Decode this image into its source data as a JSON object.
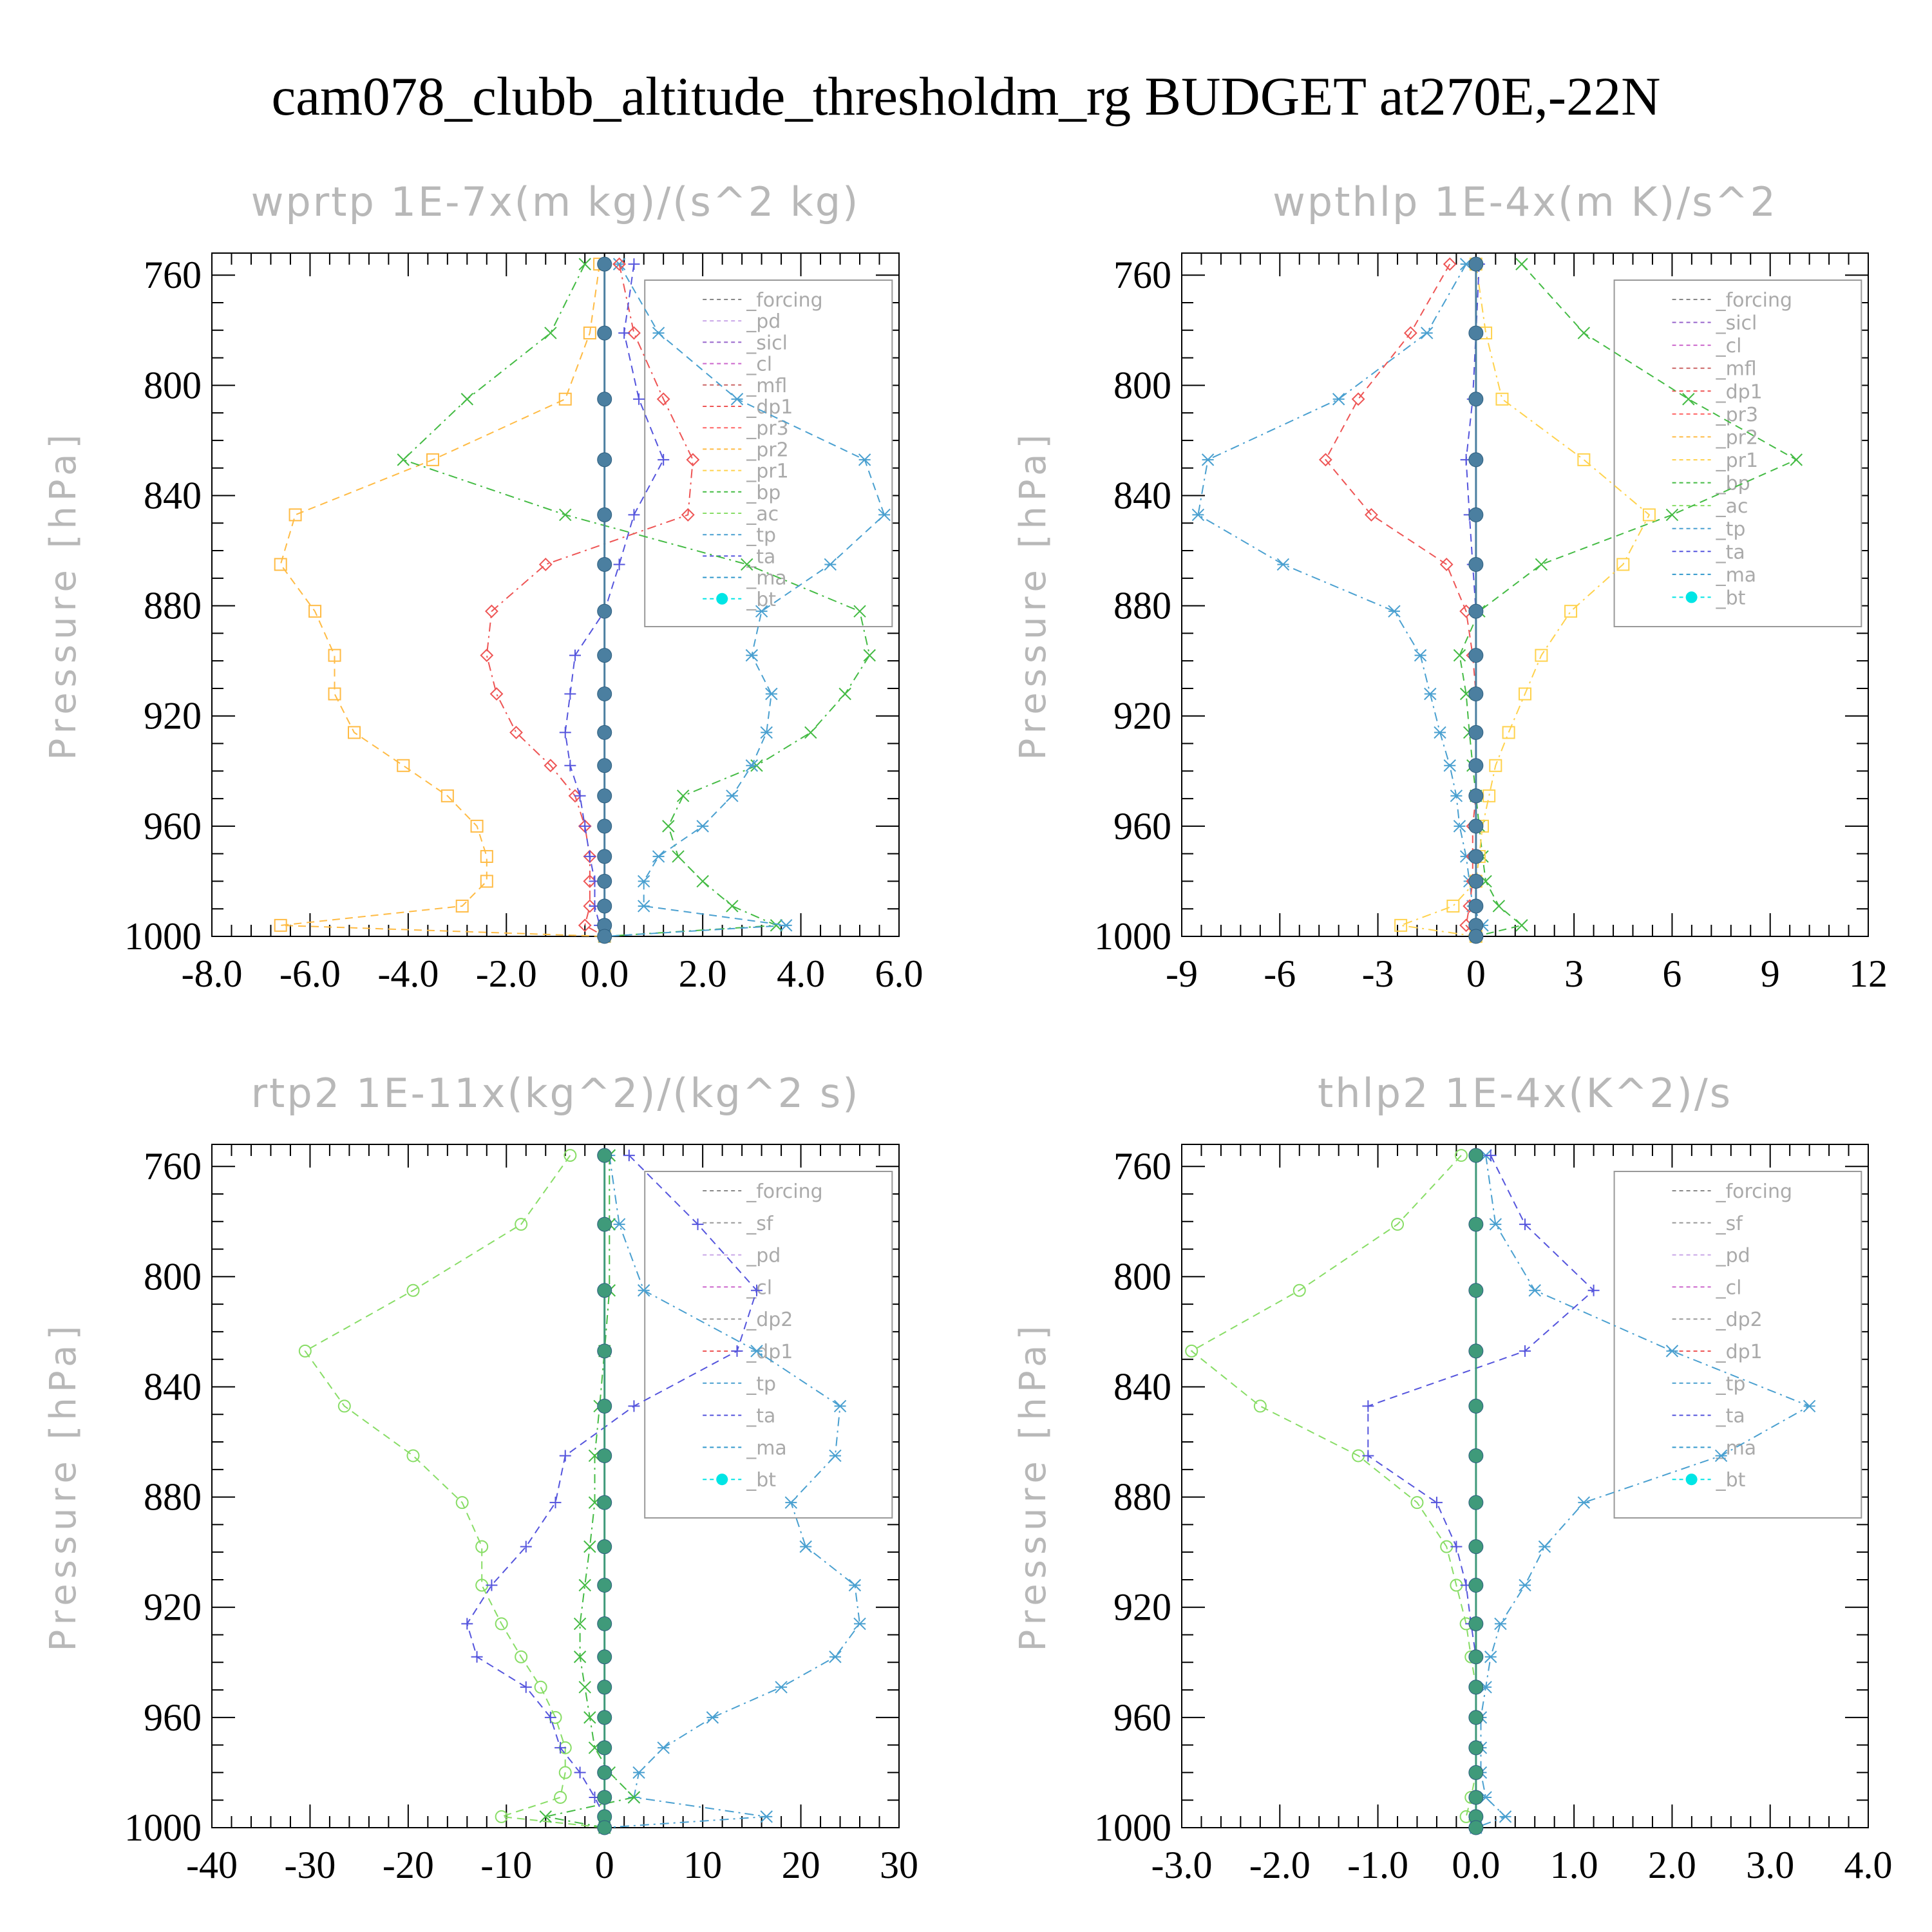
{
  "title": "cam078_clubb_altitude_thresholdm_rg  BUDGET at270E,-22N",
  "y_axis_label": "Pressure [hPa]",
  "colors": {
    "forcing": "#888888",
    "pd": "#c9a6e8",
    "sicl": "#9966cc",
    "cl": "#cc66cc",
    "mfl": "#cc6666",
    "dp1": "#ee5555",
    "pr3": "#ff6666",
    "pr2": "#ffbb44",
    "pr1": "#ffd24d",
    "bp": "#44bb44",
    "ac": "#88dd66",
    "tp": "#4aa0d0",
    "ta": "#5555dd",
    "ma": "#3399cc",
    "bt": "#00e5e5"
  },
  "chart_data": [
    {
      "type": "line",
      "title": "wprtp  1E-7x(m kg)/(s^2 kg)",
      "ylabel": "Pressure [hPa]",
      "ylim": [
        1000,
        752
      ],
      "yticks": [
        760,
        800,
        840,
        880,
        920,
        960,
        1000
      ],
      "xlim": [
        -8.0,
        6.0
      ],
      "xticks": [
        "-8.0",
        "-6.0",
        "-4.0",
        "-2.0",
        "0.0",
        "2.0",
        "4.0",
        "6.0"
      ],
      "legend": [
        "_forcing",
        "_pd",
        "_sicl",
        "_cl",
        "_mfl",
        "_dp1",
        "_pr3",
        "_pr2",
        "_pr1",
        "_bp",
        "_ac",
        "_tp",
        "_ta",
        "_ma",
        "_bt"
      ],
      "y": [
        756,
        781,
        805,
        827,
        847,
        865,
        882,
        898,
        912,
        926,
        938,
        949,
        960,
        971,
        980,
        989,
        996,
        1000
      ],
      "series": [
        {
          "name": "_pr2",
          "color": "#ffbb44",
          "marker": "square",
          "values": [
            -0.1,
            -0.3,
            -0.8,
            -3.5,
            -6.3,
            -6.6,
            -5.9,
            -5.5,
            -5.5,
            -5.1,
            -4.1,
            -3.2,
            -2.6,
            -2.4,
            -2.4,
            -2.9,
            -6.6,
            0.0
          ]
        },
        {
          "name": "_bp",
          "color": "#44bb44",
          "marker": "x",
          "values": [
            -0.4,
            -1.1,
            -2.8,
            -4.1,
            -0.8,
            2.9,
            5.2,
            5.4,
            4.9,
            4.2,
            3.1,
            1.6,
            1.3,
            1.5,
            2.0,
            2.6,
            3.5,
            0.0
          ]
        },
        {
          "name": "_tp",
          "color": "#4aa0d0",
          "marker": "star",
          "values": [
            0.3,
            1.1,
            2.7,
            5.3,
            5.7,
            4.6,
            3.2,
            3.0,
            3.4,
            3.3,
            3.0,
            2.6,
            2.0,
            1.1,
            0.8,
            0.8,
            3.7,
            0.0
          ]
        },
        {
          "name": "_dp1",
          "color": "#ee5555",
          "marker": "diamond",
          "values": [
            0.3,
            0.6,
            1.2,
            1.8,
            1.7,
            -1.2,
            -2.3,
            -2.4,
            -2.2,
            -1.8,
            -1.1,
            -0.6,
            -0.4,
            -0.3,
            -0.3,
            -0.3,
            -0.4,
            0.0
          ]
        },
        {
          "name": "_ta",
          "color": "#5555dd",
          "marker": "plus",
          "values": [
            0.6,
            0.4,
            0.7,
            1.2,
            0.6,
            0.3,
            0.0,
            -0.6,
            -0.7,
            -0.8,
            -0.7,
            -0.5,
            -0.4,
            -0.3,
            -0.2,
            -0.2,
            -0.1,
            0.0
          ]
        },
        {
          "name": "_bt",
          "color": "#4b7fa0",
          "marker": "dot",
          "values": [
            0,
            0,
            0,
            0,
            0,
            0,
            0,
            0,
            0,
            0,
            0,
            0,
            0,
            0,
            0,
            0,
            0,
            0
          ]
        }
      ]
    },
    {
      "type": "line",
      "title": "wpthlp  1E-4x(m K)/s^2",
      "ylabel": "Pressure [hPa]",
      "ylim": [
        1000,
        752
      ],
      "yticks": [
        760,
        800,
        840,
        880,
        920,
        960,
        1000
      ],
      "xlim": [
        -9,
        12
      ],
      "xticks": [
        "-9",
        "-6",
        "-3",
        "0",
        "3",
        "6",
        "9",
        "12"
      ],
      "legend": [
        "_forcing",
        "_sicl",
        "_cl",
        "_mfl",
        "_dp1",
        "_pr3",
        "_pr2",
        "_pr1",
        "_bp",
        "_ac",
        "_tp",
        "_ta",
        "_ma",
        "_bt"
      ],
      "y": [
        756,
        781,
        805,
        827,
        847,
        865,
        882,
        898,
        912,
        926,
        938,
        949,
        960,
        971,
        980,
        989,
        996,
        1000
      ],
      "series": [
        {
          "name": "_bp",
          "color": "#44bb44",
          "marker": "x",
          "values": [
            1.4,
            3.3,
            6.5,
            9.8,
            6.0,
            2.0,
            0.1,
            -0.5,
            -0.3,
            -0.2,
            -0.1,
            0.0,
            0.1,
            0.2,
            0.3,
            0.7,
            1.4,
            0.0
          ]
        },
        {
          "name": "_tp",
          "color": "#4aa0d0",
          "marker": "star",
          "values": [
            -0.3,
            -1.5,
            -4.2,
            -8.2,
            -8.5,
            -5.9,
            -2.5,
            -1.7,
            -1.4,
            -1.1,
            -0.8,
            -0.6,
            -0.5,
            -0.3,
            -0.2,
            -0.1,
            0.2,
            0.0
          ]
        },
        {
          "name": "_dp1",
          "color": "#ee5555",
          "marker": "diamond",
          "values": [
            -0.8,
            -2.0,
            -3.6,
            -4.6,
            -3.2,
            -0.9,
            -0.3,
            -0.1,
            0.0,
            0.0,
            0.0,
            0.0,
            -0.1,
            -0.1,
            -0.1,
            -0.2,
            -0.3,
            0.0
          ]
        },
        {
          "name": "_pr1",
          "color": "#ffd24d",
          "marker": "square",
          "values": [
            0.0,
            0.3,
            0.8,
            3.3,
            5.3,
            4.5,
            2.9,
            2.0,
            1.5,
            1.0,
            0.6,
            0.4,
            0.2,
            0.1,
            0.0,
            -0.7,
            -2.3,
            0.0
          ]
        },
        {
          "name": "_ta",
          "color": "#5555dd",
          "marker": "plus",
          "values": [
            0.1,
            0.0,
            -0.1,
            -0.3,
            -0.2,
            -0.1,
            0.0,
            0.0,
            0.0,
            0.0,
            0.0,
            0.0,
            0.0,
            0.0,
            0.0,
            0.0,
            0.0,
            0.0
          ]
        },
        {
          "name": "_bt",
          "color": "#4b7fa0",
          "marker": "dot",
          "values": [
            0,
            0,
            0,
            0,
            0,
            0,
            0,
            0,
            0,
            0,
            0,
            0,
            0,
            0,
            0,
            0,
            0,
            0
          ]
        }
      ]
    },
    {
      "type": "line",
      "title": "rtp2  1E-11x(kg^2)/(kg^2 s)",
      "ylabel": "Pressure [hPa]",
      "ylim": [
        1000,
        752
      ],
      "yticks": [
        760,
        800,
        840,
        880,
        920,
        960,
        1000
      ],
      "xlim": [
        -40,
        30
      ],
      "xticks": [
        "-40",
        "-30",
        "-20",
        "-10",
        "0",
        "10",
        "20",
        "30"
      ],
      "legend": [
        "_forcing",
        "_sf",
        "_pd",
        "_cl",
        "_dp2",
        "_dp1",
        "_tp",
        "_ta",
        "_ma",
        "_bt"
      ],
      "y": [
        756,
        781,
        805,
        827,
        847,
        865,
        882,
        898,
        912,
        926,
        938,
        949,
        960,
        971,
        980,
        989,
        996,
        1000
      ],
      "series": [
        {
          "name": "_dp1",
          "color": "#88dd66",
          "marker": "circle",
          "values": [
            -3.5,
            -8.5,
            -19.5,
            -30.5,
            -26.5,
            -19.5,
            -14.5,
            -12.5,
            -12.5,
            -10.5,
            -8.5,
            -6.5,
            -5.0,
            -4.0,
            -4.0,
            -4.5,
            -10.5,
            0.0
          ]
        },
        {
          "name": "_tp",
          "color": "#4aa0d0",
          "marker": "star",
          "values": [
            0.5,
            1.5,
            4.0,
            15.5,
            24.0,
            23.5,
            19.0,
            20.5,
            25.5,
            26.0,
            23.5,
            18.0,
            11.0,
            6.0,
            3.5,
            3.0,
            16.5,
            0.0
          ]
        },
        {
          "name": "_ta",
          "color": "#5555dd",
          "marker": "plus",
          "values": [
            2.5,
            9.5,
            15.5,
            13.5,
            3.0,
            -4.0,
            -5.0,
            -8.0,
            -11.5,
            -14.0,
            -13.0,
            -8.0,
            -5.5,
            -4.5,
            -2.5,
            -1.0,
            0.0,
            0.0
          ]
        },
        {
          "name": "_dp2",
          "color": "#44bb44",
          "marker": "x",
          "values": [
            0.5,
            0.5,
            0.5,
            0.0,
            -0.5,
            -1.0,
            -1.0,
            -1.5,
            -2.0,
            -2.5,
            -2.5,
            -2.0,
            -1.5,
            -1.0,
            0.5,
            3.0,
            -6.0,
            0.0
          ]
        },
        {
          "name": "_forcing",
          "color": "#ee5555",
          "marker": "none",
          "values": [
            0,
            0,
            0,
            0,
            0,
            0,
            0,
            0,
            0,
            0,
            0,
            0,
            0,
            0,
            0,
            0,
            0,
            0
          ]
        },
        {
          "name": "_bt",
          "color": "#3f9a7a",
          "marker": "dot",
          "values": [
            0,
            0,
            0,
            0,
            0,
            0,
            0,
            0,
            0,
            0,
            0,
            0,
            0,
            0,
            0,
            0,
            0,
            0
          ]
        }
      ]
    },
    {
      "type": "line",
      "title": "thlp2  1E-4x(K^2)/s",
      "ylabel": "Pressure [hPa]",
      "ylim": [
        1000,
        752
      ],
      "yticks": [
        760,
        800,
        840,
        880,
        920,
        960,
        1000
      ],
      "xlim": [
        -3.0,
        4.0
      ],
      "xticks": [
        "-3.0",
        "-2.0",
        "-1.0",
        "0.0",
        "1.0",
        "2.0",
        "3.0",
        "4.0"
      ],
      "legend": [
        "_forcing",
        "_sf",
        "_pd",
        "_cl",
        "_dp2",
        "_dp1",
        "_tp",
        "_ta",
        "_ma",
        "_bt"
      ],
      "y": [
        756,
        781,
        805,
        827,
        847,
        865,
        882,
        898,
        912,
        926,
        938,
        949,
        960,
        971,
        980,
        989,
        996,
        1000
      ],
      "series": [
        {
          "name": "_dp1",
          "color": "#88dd66",
          "marker": "circle",
          "values": [
            -0.15,
            -0.8,
            -1.8,
            -2.9,
            -2.2,
            -1.2,
            -0.6,
            -0.3,
            -0.2,
            -0.1,
            -0.05,
            0.0,
            0.0,
            0.0,
            0.0,
            -0.05,
            -0.1,
            0.0
          ]
        },
        {
          "name": "_tp",
          "color": "#4aa0d0",
          "marker": "star",
          "values": [
            0.1,
            0.2,
            0.6,
            2.0,
            3.4,
            2.5,
            1.1,
            0.7,
            0.5,
            0.25,
            0.15,
            0.1,
            0.05,
            0.05,
            0.05,
            0.1,
            0.3,
            0.0
          ]
        },
        {
          "name": "_ta",
          "color": "#5555dd",
          "marker": "plus",
          "values": [
            0.15,
            0.5,
            1.2,
            0.5,
            -1.1,
            -1.1,
            -0.4,
            -0.2,
            -0.1,
            -0.05,
            0.0,
            0.0,
            0.0,
            0.0,
            0.0,
            0.0,
            0.0,
            0.0
          ]
        },
        {
          "name": "_forcing",
          "color": "#ee5555",
          "marker": "none",
          "values": [
            0,
            0,
            0,
            0,
            0,
            0,
            0,
            0,
            0,
            0,
            0,
            0,
            0,
            0,
            0,
            0,
            0,
            0
          ]
        },
        {
          "name": "_bt",
          "color": "#3f9a7a",
          "marker": "dot",
          "values": [
            0,
            0,
            0,
            0,
            0,
            0,
            0,
            0,
            0,
            0,
            0,
            0,
            0,
            0,
            0,
            0,
            0,
            0
          ]
        }
      ]
    }
  ]
}
